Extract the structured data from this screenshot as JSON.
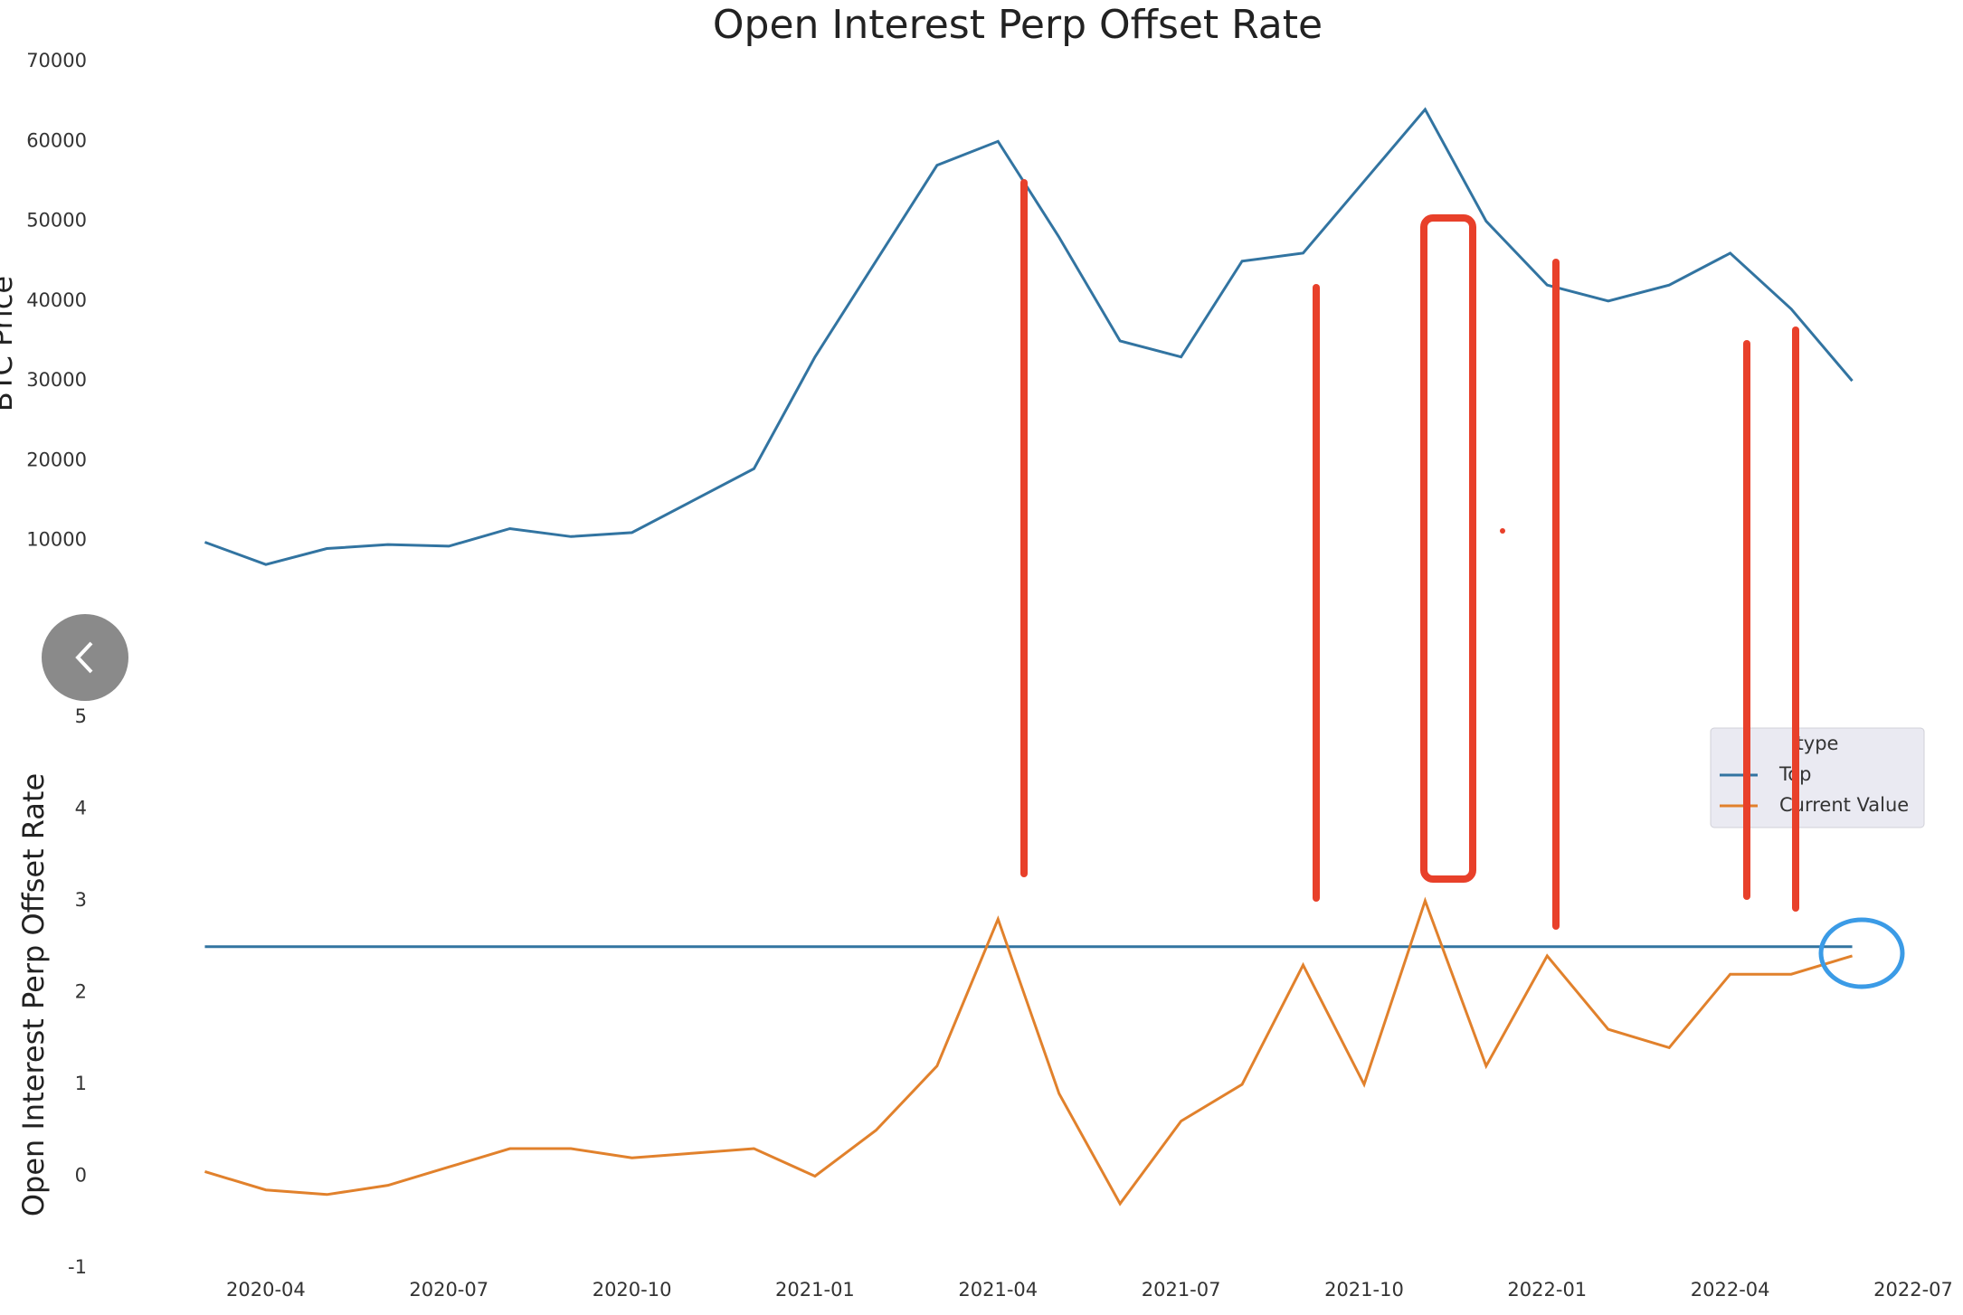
{
  "chart_data": [
    {
      "type": "line",
      "title": "Open Interest Perp Offset Rate",
      "y_label": "BTC Price",
      "x": [
        "2020-03",
        "2020-04",
        "2020-05",
        "2020-06",
        "2020-07",
        "2020-08",
        "2020-09",
        "2020-10",
        "2020-11",
        "2020-12",
        "2021-01",
        "2021-02",
        "2021-03",
        "2021-04",
        "2021-05",
        "2021-06",
        "2021-07",
        "2021-08",
        "2021-09",
        "2021-10",
        "2021-11",
        "2021-12",
        "2022-01",
        "2022-02",
        "2022-03",
        "2022-04",
        "2022-05",
        "2022-06"
      ],
      "values": [
        9800,
        7000,
        9000,
        9500,
        9300,
        11500,
        10500,
        11000,
        15000,
        19000,
        33000,
        45000,
        57000,
        60000,
        48000,
        35000,
        33000,
        45000,
        46000,
        55000,
        64000,
        50000,
        42000,
        40000,
        42000,
        46000,
        39000,
        30000
      ],
      "color": "#3274a1",
      "xlim": [
        "2020-02",
        "2022-07"
      ],
      "ylim": [
        0,
        70000
      ],
      "yticks": [
        10000,
        20000,
        30000,
        40000,
        50000,
        60000,
        70000
      ]
    },
    {
      "type": "line",
      "y_label": "Open Interest Perp Offset Rate",
      "x": [
        "2020-03",
        "2020-04",
        "2020-05",
        "2020-06",
        "2020-07",
        "2020-08",
        "2020-09",
        "2020-10",
        "2020-11",
        "2020-12",
        "2021-01",
        "2021-02",
        "2021-03",
        "2021-04",
        "2021-05",
        "2021-06",
        "2021-07",
        "2021-08",
        "2021-09",
        "2021-10",
        "2021-11",
        "2021-12",
        "2022-01",
        "2022-02",
        "2022-03",
        "2022-04",
        "2022-05",
        "2022-06"
      ],
      "series": [
        {
          "name": "Top",
          "color": "#3274a1",
          "values": [
            2.5,
            2.5,
            2.5,
            2.5,
            2.5,
            2.5,
            2.5,
            2.5,
            2.5,
            2.5,
            2.5,
            2.5,
            2.5,
            2.5,
            2.5,
            2.5,
            2.5,
            2.5,
            2.5,
            2.5,
            2.5,
            2.5,
            2.5,
            2.5,
            2.5,
            2.5,
            2.5,
            2.5
          ]
        },
        {
          "name": "Current Value",
          "color": "#e1812c",
          "values": [
            0.05,
            -0.15,
            -0.2,
            -0.1,
            0.1,
            0.3,
            0.3,
            0.2,
            0.25,
            0.3,
            0.0,
            0.5,
            1.2,
            2.8,
            0.9,
            -0.3,
            0.6,
            1.0,
            2.3,
            1.0,
            3.0,
            1.2,
            2.4,
            1.6,
            1.4,
            2.2,
            2.2,
            2.4
          ]
        }
      ],
      "legend_title": "type",
      "legend": "upper right",
      "xlim": [
        "2020-02",
        "2022-07"
      ],
      "xticks": [
        "2020-04",
        "2020-07",
        "2020-10",
        "2021-01",
        "2021-04",
        "2021-07",
        "2021-10",
        "2022-01",
        "2022-04",
        "2022-07"
      ],
      "ylim": [
        -1,
        5
      ],
      "yticks": [
        -1,
        0,
        1,
        2,
        3,
        4,
        5
      ]
    }
  ]
}
